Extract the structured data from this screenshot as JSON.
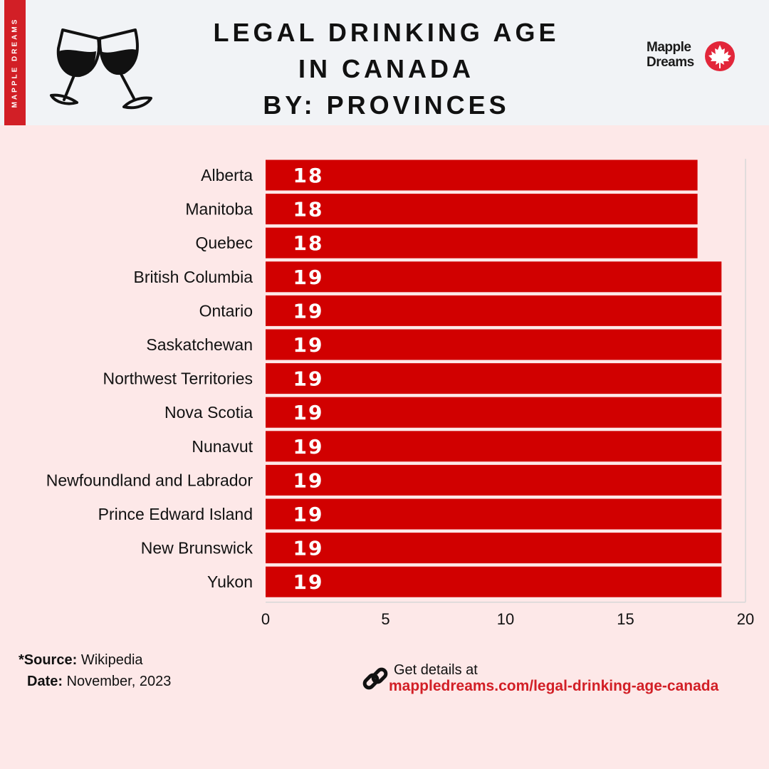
{
  "header": {
    "side_tab": "MAPPLE DREAMS",
    "title_lines": [
      "LEGAL DRINKING AGE",
      "IN CANADA",
      "BY: PROVINCES"
    ],
    "logo_line1": "Mapple",
    "logo_line2": "Dreams",
    "icons": [
      "wine-glasses-icon",
      "maple-leaf-icon"
    ]
  },
  "chart_data": {
    "type": "bar",
    "orientation": "horizontal",
    "title": "LEGAL DRINKING AGE IN CANADA BY: PROVINCES",
    "categories": [
      "Alberta",
      "Manitoba",
      "Quebec",
      "British Columbia",
      "Ontario",
      "Saskatchewan",
      "Northwest Territories",
      "Nova Scotia",
      "Nunavut",
      "Newfoundland and Labrador",
      "Prince Edward Island",
      "New Brunswick",
      "Yukon"
    ],
    "values": [
      18,
      18,
      18,
      19,
      19,
      19,
      19,
      19,
      19,
      19,
      19,
      19,
      19
    ],
    "xlim": [
      0,
      20
    ],
    "xticks": [
      0,
      5,
      10,
      15,
      20
    ],
    "xlabel": "",
    "ylabel": "",
    "grid": false,
    "bar_color": "#d10000",
    "data_label_color": "#ffffff"
  },
  "footer": {
    "source_label": "*Source:",
    "source_value": "Wikipedia",
    "date_label": "Date:",
    "date_value": "November, 2023",
    "details_label": "Get details at",
    "details_url": "mappledreams.com/legal-drinking-age-canada",
    "link_icon": "link-icon"
  }
}
